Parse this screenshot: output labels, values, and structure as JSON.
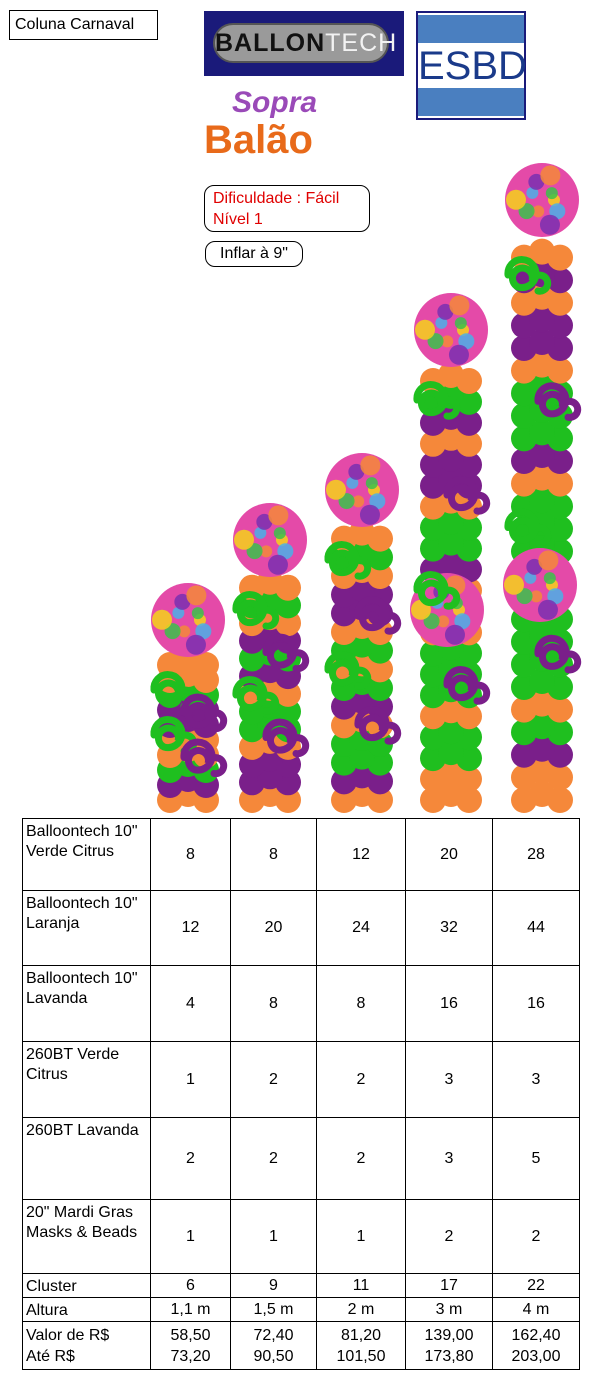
{
  "title": "Coluna Carnaval",
  "logos": {
    "balloontech": {
      "part1": "BALL",
      "part2": "ON",
      "part3": "TECH"
    },
    "esbd": "ESBD",
    "sopra": {
      "line1": "Sopra",
      "line2": "Balão"
    }
  },
  "difficulty": {
    "line1": "Dificuldade : Fácil",
    "line2": "Nível 1"
  },
  "inflate": "Inflar à 9\"",
  "colors": {
    "green": "#1fbf1f",
    "orange": "#f5883a",
    "purple": "#7a1f8a",
    "accent_red": "#e00000"
  },
  "columns": [
    {
      "rows": [
        "orange",
        "purple",
        "green",
        "orange",
        "purple",
        "orange",
        "green",
        "orange"
      ],
      "heights": "1,1 m"
    },
    {
      "rows": [
        "orange",
        "purple",
        "green",
        "orange",
        "purple",
        "orange",
        "green",
        "orange"
      ],
      "heights": "1,5 m"
    },
    {
      "rows": [
        "orange",
        "purple",
        "green",
        "orange",
        "purple",
        "orange",
        "green",
        "orange"
      ],
      "heights": "2 m"
    },
    {
      "rows": [
        "orange",
        "purple",
        "green",
        "orange",
        "purple",
        "orange",
        "green",
        "orange"
      ],
      "heights": "3 m"
    },
    {
      "rows": [
        "orange",
        "purple",
        "green",
        "orange",
        "purple",
        "orange",
        "green",
        "orange"
      ],
      "heights": "4 m"
    }
  ],
  "table": {
    "rows": [
      {
        "label": "Balloontech 10\" Verde Citrus",
        "values": [
          "8",
          "8",
          "12",
          "20",
          "28"
        ]
      },
      {
        "label": "Balloontech 10\" Laranja",
        "values": [
          "12",
          "20",
          "24",
          "32",
          "44"
        ]
      },
      {
        "label": "Balloontech 10\" Lavanda",
        "values": [
          "4",
          "8",
          "8",
          "16",
          "16"
        ]
      },
      {
        "label": "260BT Verde Citrus",
        "values": [
          "1",
          "2",
          "2",
          "3",
          "3"
        ]
      },
      {
        "label": "260BT Lavanda",
        "values": [
          "2",
          "2",
          "2",
          "3",
          "5"
        ]
      },
      {
        "label": "20\" Mardi Gras Masks & Beads",
        "values": [
          "1",
          "1",
          "1",
          "2",
          "2"
        ]
      },
      {
        "label": "Cluster",
        "values": [
          "6",
          "9",
          "11",
          "17",
          "22"
        ]
      },
      {
        "label": "Altura",
        "values": [
          "1,1 m",
          "1,5 m",
          "2 m",
          "3 m",
          "4 m"
        ]
      }
    ],
    "price": {
      "label1": "Valor de  R$",
      "label2": "Até R$",
      "from": [
        "58,50",
        "72,40",
        "81,20",
        "139,00",
        "162,40"
      ],
      "to": [
        "73,20",
        "90,50",
        "101,50",
        "173,80",
        "203,00"
      ]
    }
  }
}
